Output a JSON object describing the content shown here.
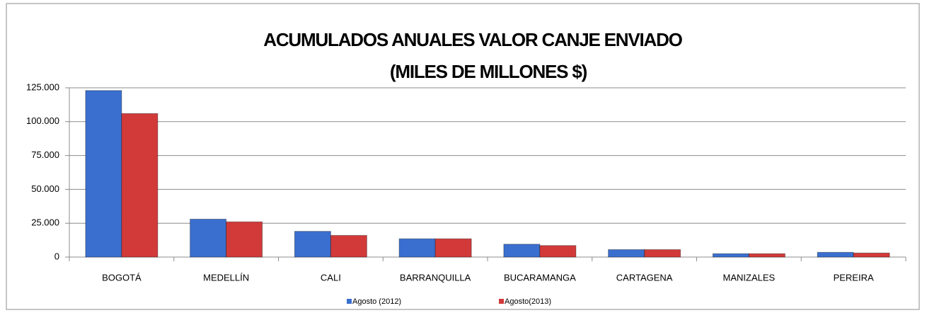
{
  "chart_data": {
    "type": "bar",
    "title": [
      "ACUMULADOS ANUALES  VALOR CANJE ENVIADO",
      "(MILES DE MILLONES $)"
    ],
    "categories": [
      "BOGOTÁ",
      "MEDELLÍN",
      "CALI",
      "BARRANQUILLA",
      "BUCARAMANGA",
      "CARTAGENA",
      "MANIZALES",
      "PEREIRA"
    ],
    "series": [
      {
        "name": "Agosto (2012)",
        "color": "#3a6fd0",
        "values": [
          123000,
          28000,
          19000,
          13500,
          9500,
          5500,
          2500,
          3500
        ]
      },
      {
        "name": "Agosto(2013)",
        "color": "#d23a3a",
        "values": [
          106000,
          26000,
          16000,
          13500,
          8500,
          5500,
          2500,
          3000
        ]
      }
    ],
    "ylim": [
      0,
      125000
    ],
    "yticks": [
      0,
      {
        "value": 25000,
        "label": "25.000"
      },
      {
        "value": 50000,
        "label": "50.000"
      },
      {
        "value": 75000,
        "label": "75.000"
      },
      {
        "value": 100000,
        "label": "100.000"
      },
      {
        "value": 125000,
        "label": "125.000"
      }
    ],
    "grid": true,
    "legend": "bottom"
  }
}
